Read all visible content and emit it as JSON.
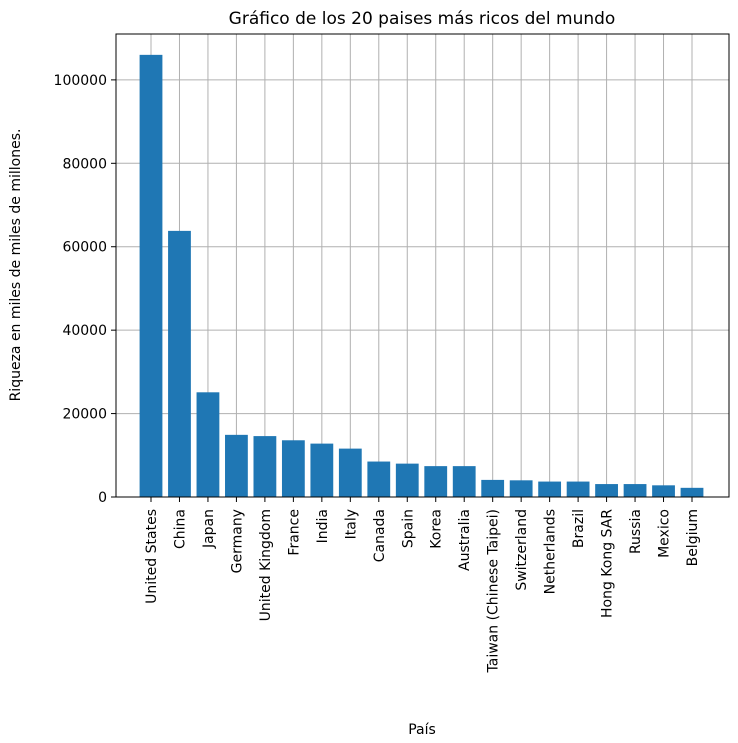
{
  "chart_data": {
    "type": "bar",
    "title": "Gráfico de los 20 paises más ricos del mundo",
    "xlabel": "País",
    "ylabel": "Riqueza en miles de miles de millones.",
    "categories": [
      "United States",
      "China",
      "Japan",
      "Germany",
      "United Kingdom",
      "France",
      "India",
      "Italy",
      "Canada",
      "Spain",
      "Korea",
      "Australia",
      "Taiwan (Chinese Taipei)",
      "Switzerland",
      "Netherlands",
      "Brazil",
      "Hong Kong SAR",
      "Russia",
      "Mexico",
      "Belgium"
    ],
    "values": [
      106000,
      63800,
      25100,
      14900,
      14600,
      13600,
      12800,
      11600,
      8500,
      8000,
      7400,
      7400,
      4100,
      4000,
      3700,
      3700,
      3100,
      3100,
      2800,
      2200
    ],
    "ylim": [
      0,
      111000
    ],
    "yticks": [
      0,
      20000,
      40000,
      60000,
      80000,
      100000
    ],
    "grid": true,
    "bar_color": "#1f77b4"
  }
}
